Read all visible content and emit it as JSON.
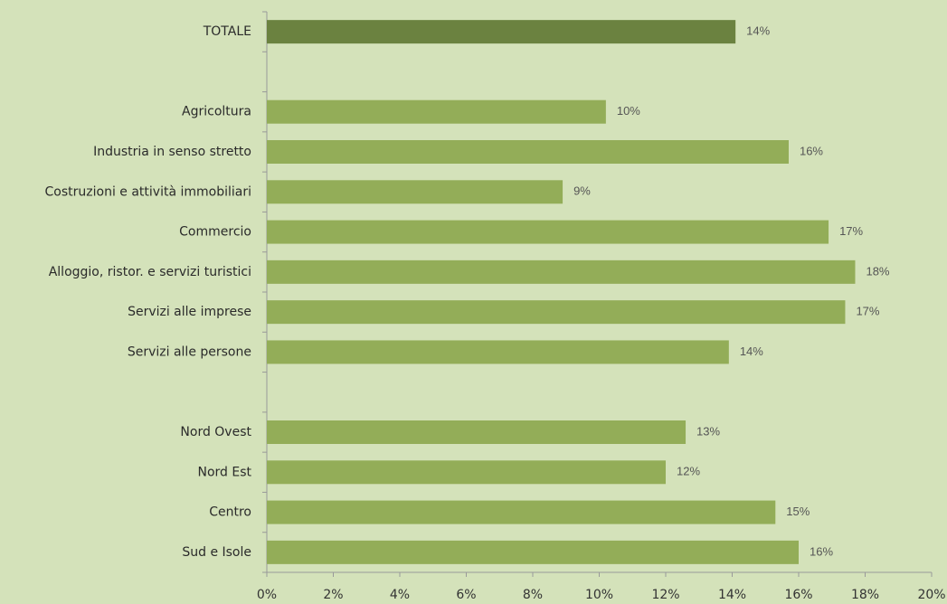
{
  "chart_data": {
    "type": "barh",
    "categories": [
      "TOTALE",
      null,
      "Agricoltura",
      "Industria in senso stretto",
      "Costruzioni e attività immobiliari",
      "Commercio",
      "Alloggio, ristor. e servizi turistici",
      "Servizi alle imprese",
      "Servizi alle persone",
      null,
      "Nord Ovest",
      "Nord Est",
      "Centro",
      "Sud e Isole"
    ],
    "values": [
      14.1,
      null,
      10.2,
      15.7,
      8.9,
      16.9,
      17.7,
      17.4,
      13.9,
      null,
      12.6,
      12.0,
      15.3,
      16.0
    ],
    "value_labels": [
      "14%",
      null,
      "10%",
      "16%",
      "9%",
      "17%",
      "18%",
      "17%",
      "14%",
      null,
      "13%",
      "12%",
      "15%",
      "16%"
    ],
    "colors": [
      "#6b8240",
      null,
      "#93ad58",
      "#93ad58",
      "#93ad58",
      "#93ad58",
      "#93ad58",
      "#93ad58",
      "#93ad58",
      null,
      "#93ad58",
      "#93ad58",
      "#93ad58",
      "#93ad58"
    ],
    "xlim": [
      0,
      20
    ],
    "xticks": [
      {
        "value": 0,
        "label": "0%"
      },
      {
        "value": 2,
        "label": "2%"
      },
      {
        "value": 4,
        "label": "4%"
      },
      {
        "value": 6,
        "label": "6%"
      },
      {
        "value": 8,
        "label": "8%"
      },
      {
        "value": 10,
        "label": "10%"
      },
      {
        "value": 12,
        "label": "12%"
      },
      {
        "value": 14,
        "label": "14%"
      },
      {
        "value": 16,
        "label": "16%"
      },
      {
        "value": 18,
        "label": "18%"
      },
      {
        "value": 20,
        "label": "20%"
      }
    ]
  }
}
